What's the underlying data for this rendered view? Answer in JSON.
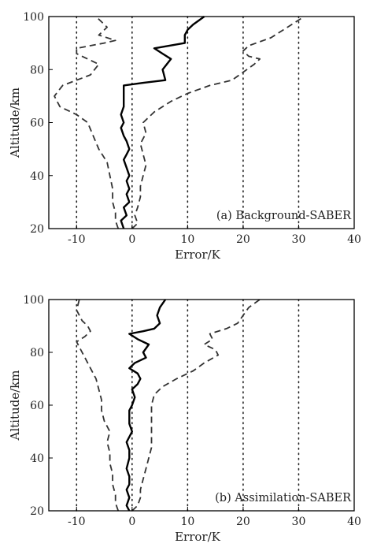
{
  "chart_data": [
    {
      "type": "line",
      "annotation": "(a)  Background-SABER",
      "xlabel": "Error/K",
      "ylabel": "Altitude/km",
      "xlim": [
        -15,
        40
      ],
      "ylim": [
        20,
        100
      ],
      "xticks": [
        -10,
        0,
        10,
        20,
        30,
        40
      ],
      "yticks": [
        20,
        40,
        60,
        80,
        100
      ],
      "vertical_reference_lines": [
        -10,
        0,
        10,
        20,
        30
      ],
      "series": [
        {
          "style": "solid",
          "points": [
            [
              -1.5,
              20
            ],
            [
              -2,
              23
            ],
            [
              -1,
              25
            ],
            [
              -1.5,
              28
            ],
            [
              -0.5,
              30
            ],
            [
              -1,
              33
            ],
            [
              -0.5,
              35
            ],
            [
              -1,
              38
            ],
            [
              -0.5,
              40
            ],
            [
              -1,
              43
            ],
            [
              -1.5,
              46
            ],
            [
              -1,
              48
            ],
            [
              -0.5,
              50
            ],
            [
              -1,
              53
            ],
            [
              -1.5,
              55
            ],
            [
              -2,
              58
            ],
            [
              -1.5,
              60
            ],
            [
              -2,
              63
            ],
            [
              -1.5,
              66
            ],
            [
              -1.5,
              70
            ],
            [
              -1.5,
              74
            ],
            [
              2,
              75
            ],
            [
              6,
              76
            ],
            [
              5.5,
              80
            ],
            [
              7,
              84
            ],
            [
              5.5,
              86
            ],
            [
              4,
              88
            ],
            [
              9.5,
              90
            ],
            [
              9.5,
              93
            ],
            [
              10,
              95
            ],
            [
              11,
              97
            ],
            [
              13,
              100
            ]
          ]
        },
        {
          "style": "dashed",
          "points": [
            [
              -2.5,
              20
            ],
            [
              -3,
              23
            ],
            [
              -3,
              26
            ],
            [
              -3.5,
              30
            ],
            [
              -3.5,
              35
            ],
            [
              -4,
              40
            ],
            [
              -4.5,
              45
            ],
            [
              -6,
              50
            ],
            [
              -7,
              55
            ],
            [
              -8,
              60
            ],
            [
              -10,
              63
            ],
            [
              -13,
              66
            ],
            [
              -14,
              70
            ],
            [
              -12.5,
              74
            ],
            [
              -10,
              76
            ],
            [
              -7.5,
              78
            ],
            [
              -6,
              82
            ],
            [
              -8,
              84
            ],
            [
              -10,
              86
            ],
            [
              -10,
              88
            ],
            [
              -5,
              90
            ],
            [
              -3,
              91
            ],
            [
              -6,
              93
            ],
            [
              -4.5,
              96
            ],
            [
              -6.5,
              100
            ]
          ]
        },
        {
          "style": "dashed",
          "points": [
            [
              0,
              20
            ],
            [
              1,
              22
            ],
            [
              0.5,
              25
            ],
            [
              1,
              28
            ],
            [
              1.5,
              32
            ],
            [
              1.5,
              36
            ],
            [
              2,
              40
            ],
            [
              2.5,
              44
            ],
            [
              2,
              48
            ],
            [
              1.5,
              52
            ],
            [
              2.5,
              56
            ],
            [
              2,
              60
            ],
            [
              4,
              64
            ],
            [
              7,
              68
            ],
            [
              10,
              71
            ],
            [
              14,
              74
            ],
            [
              18,
              76
            ],
            [
              20,
              79
            ],
            [
              22,
              82
            ],
            [
              23,
              84
            ],
            [
              21,
              85
            ],
            [
              20,
              87
            ],
            [
              21,
              89
            ],
            [
              25,
              92
            ],
            [
              28,
              96
            ],
            [
              31,
              100
            ]
          ]
        }
      ]
    },
    {
      "type": "line",
      "annotation": "(b)  Assimilation-SABER",
      "xlabel": "Error/K",
      "ylabel": "Altitude/km",
      "xlim": [
        -15,
        40
      ],
      "ylim": [
        20,
        100
      ],
      "xticks": [
        -10,
        0,
        10,
        20,
        30,
        40
      ],
      "yticks": [
        20,
        40,
        60,
        80,
        100
      ],
      "vertical_reference_lines": [
        -10,
        0,
        10,
        20,
        30
      ],
      "series": [
        {
          "style": "solid",
          "points": [
            [
              -0.5,
              20
            ],
            [
              -1,
              22
            ],
            [
              -0.5,
              25
            ],
            [
              -1,
              28
            ],
            [
              -0.5,
              30
            ],
            [
              -0.5,
              33
            ],
            [
              -1,
              36
            ],
            [
              -0.5,
              40
            ],
            [
              -0.5,
              43
            ],
            [
              -1,
              46
            ],
            [
              0,
              50
            ],
            [
              -0.5,
              53
            ],
            [
              -0.5,
              56
            ],
            [
              -0.5,
              58
            ],
            [
              0,
              60
            ],
            [
              0.5,
              63
            ],
            [
              0,
              66
            ],
            [
              1,
              68
            ],
            [
              1.5,
              70
            ],
            [
              1,
              72
            ],
            [
              -0.5,
              74
            ],
            [
              0.5,
              76
            ],
            [
              2.5,
              78
            ],
            [
              2,
              80
            ],
            [
              3,
              83
            ],
            [
              1,
              85
            ],
            [
              -0.5,
              87
            ],
            [
              2,
              88
            ],
            [
              4,
              89
            ],
            [
              5,
              91
            ],
            [
              4.5,
              94
            ],
            [
              5,
              97
            ],
            [
              6,
              100
            ]
          ]
        },
        {
          "style": "dashed",
          "points": [
            [
              -2.5,
              20
            ],
            [
              -3,
              23
            ],
            [
              -3,
              26
            ],
            [
              -3.5,
              30
            ],
            [
              -3.5,
              34
            ],
            [
              -4,
              38
            ],
            [
              -4,
              42
            ],
            [
              -4.5,
              46
            ],
            [
              -4,
              50
            ],
            [
              -5,
              54
            ],
            [
              -5.5,
              58
            ],
            [
              -5.5,
              62
            ],
            [
              -6,
              66
            ],
            [
              -6.5,
              70
            ],
            [
              -7.5,
              74
            ],
            [
              -8.5,
              78
            ],
            [
              -9.5,
              82
            ],
            [
              -10,
              84
            ],
            [
              -8.5,
              86
            ],
            [
              -7.5,
              88
            ],
            [
              -8,
              90
            ],
            [
              -9,
              92
            ],
            [
              -9.5,
              94
            ],
            [
              -10,
              96
            ],
            [
              -9.5,
              100
            ]
          ]
        },
        {
          "style": "dashed",
          "points": [
            [
              0,
              20
            ],
            [
              1,
              22
            ],
            [
              1.5,
              25
            ],
            [
              1.5,
              28
            ],
            [
              2,
              32
            ],
            [
              2.5,
              36
            ],
            [
              3,
              40
            ],
            [
              3.5,
              44
            ],
            [
              3.5,
              48
            ],
            [
              3.5,
              52
            ],
            [
              3.5,
              56
            ],
            [
              3.5,
              60
            ],
            [
              4,
              64
            ],
            [
              5.5,
              67
            ],
            [
              8,
              70
            ],
            [
              11,
              73
            ],
            [
              13,
              76
            ],
            [
              15.5,
              79
            ],
            [
              15,
              81
            ],
            [
              13,
              83
            ],
            [
              14.5,
              85
            ],
            [
              14,
              87
            ],
            [
              17,
              89
            ],
            [
              19,
              91
            ],
            [
              20,
              94
            ],
            [
              21,
              97
            ],
            [
              23,
              100
            ]
          ]
        }
      ]
    }
  ]
}
